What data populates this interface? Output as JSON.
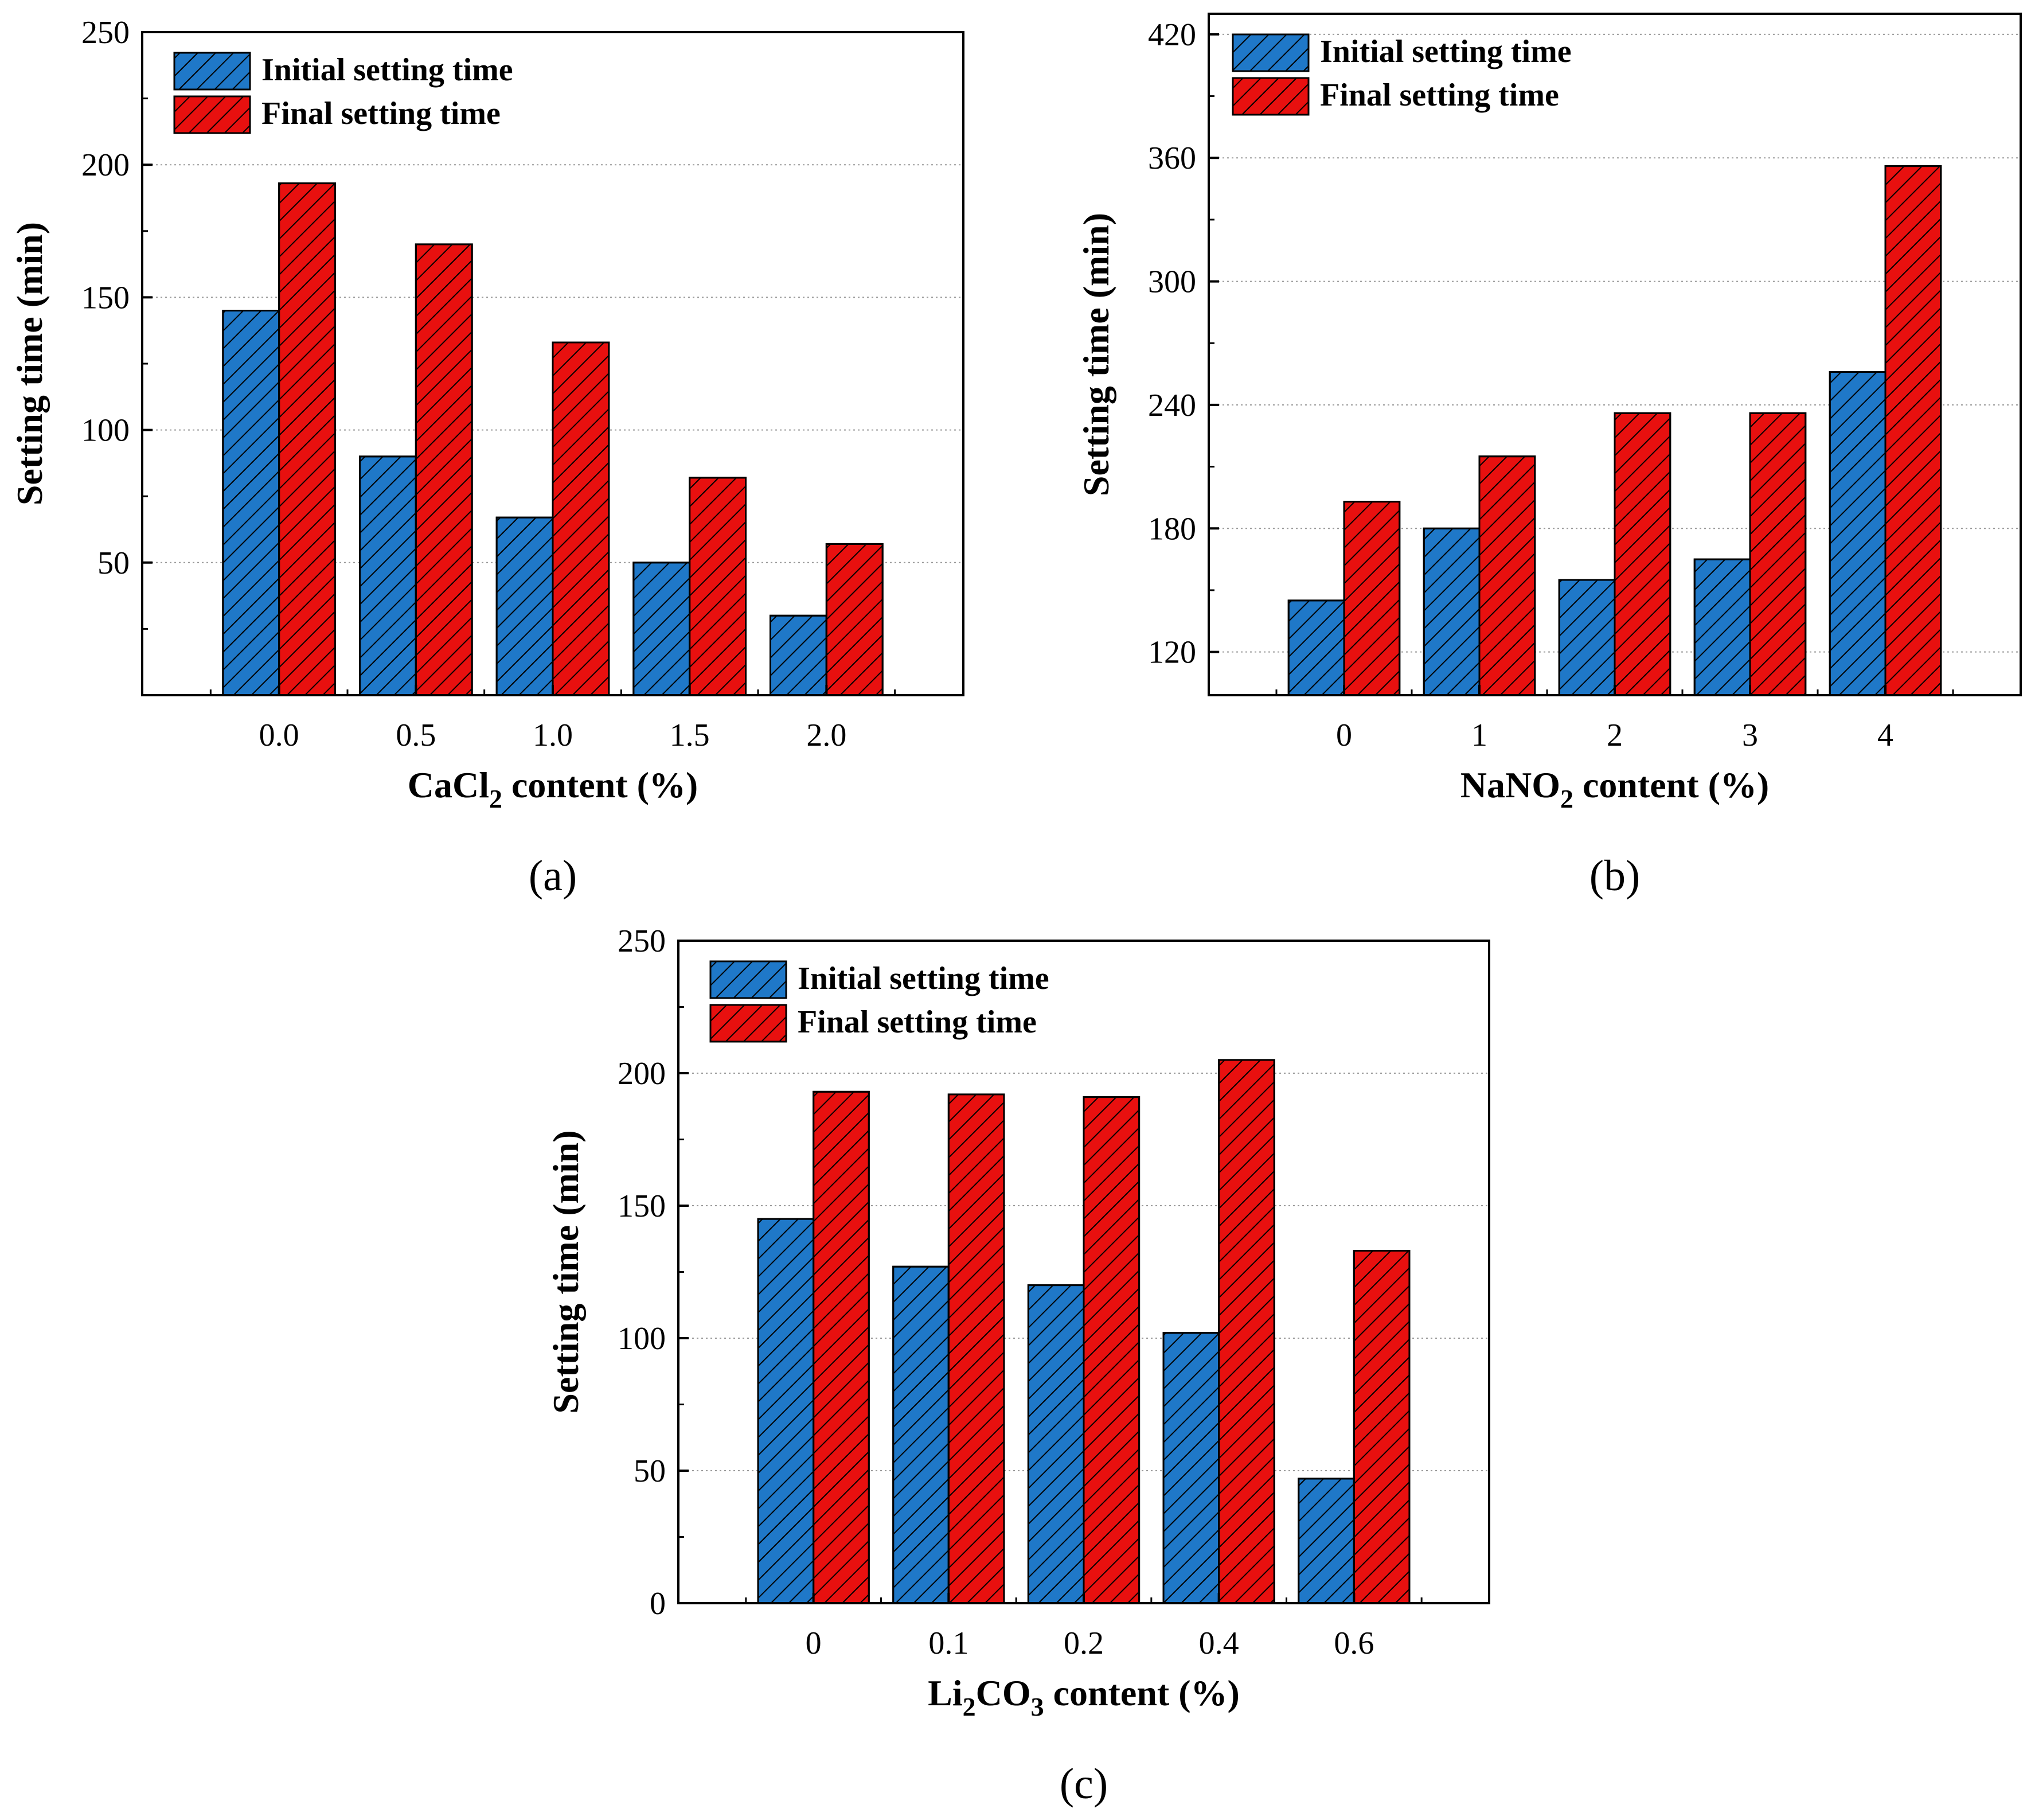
{
  "colors": {
    "initial": "#1f78c8",
    "final": "#e8100f",
    "hatch": "#000000"
  },
  "chart_data": [
    {
      "id": "a",
      "type": "bar",
      "panel_label": "(a)",
      "xlabel_main": "CaCl",
      "xlabel_sub": "2",
      "xlabel_rest": " content (%)",
      "ylabel": "Setting time (min)",
      "categories": [
        "0.0",
        "0.5",
        "1.0",
        "1.5",
        "2.0"
      ],
      "ylim": [
        0,
        250
      ],
      "yticks": [
        "50",
        "100",
        "150",
        "200",
        "250"
      ],
      "grid": true,
      "legend_position": "top-left",
      "series": [
        {
          "name": "Initial setting time",
          "values": [
            145,
            90,
            67,
            50,
            30
          ]
        },
        {
          "name": "Final setting time",
          "values": [
            193,
            170,
            133,
            82,
            57
          ]
        }
      ]
    },
    {
      "id": "b",
      "type": "bar",
      "panel_label": "(b)",
      "xlabel_main": "NaNO",
      "xlabel_sub": "2",
      "xlabel_rest": " content (%)",
      "ylabel": "Setting time (min)",
      "categories": [
        "0",
        "1",
        "2",
        "3",
        "4"
      ],
      "ylim": [
        99,
        430
      ],
      "yticks": [
        "120",
        "180",
        "240",
        "300",
        "360",
        "420"
      ],
      "grid": true,
      "legend_position": "top-left",
      "series": [
        {
          "name": "Initial setting time",
          "values": [
            145,
            180,
            155,
            165,
            256
          ]
        },
        {
          "name": "Final setting time",
          "values": [
            193,
            215,
            236,
            236,
            356
          ]
        }
      ]
    },
    {
      "id": "c",
      "type": "bar",
      "panel_label": "(c)",
      "xlabel_main": "Li",
      "xlabel_sub": "2",
      "xlabel_mid": "CO",
      "xlabel_sub2": "3",
      "xlabel_rest": " content (%)",
      "ylabel": "Setting time (min)",
      "categories": [
        "0",
        "0.1",
        "0.2",
        "0.4",
        "0.6"
      ],
      "ylim": [
        0,
        250
      ],
      "yticks": [
        "0",
        "50",
        "100",
        "150",
        "200",
        "250"
      ],
      "grid": true,
      "legend_position": "top-left",
      "series": [
        {
          "name": "Initial setting time",
          "values": [
            145,
            127,
            120,
            102,
            47
          ]
        },
        {
          "name": "Final setting time",
          "values": [
            193,
            192,
            191,
            205,
            133
          ]
        }
      ]
    }
  ]
}
